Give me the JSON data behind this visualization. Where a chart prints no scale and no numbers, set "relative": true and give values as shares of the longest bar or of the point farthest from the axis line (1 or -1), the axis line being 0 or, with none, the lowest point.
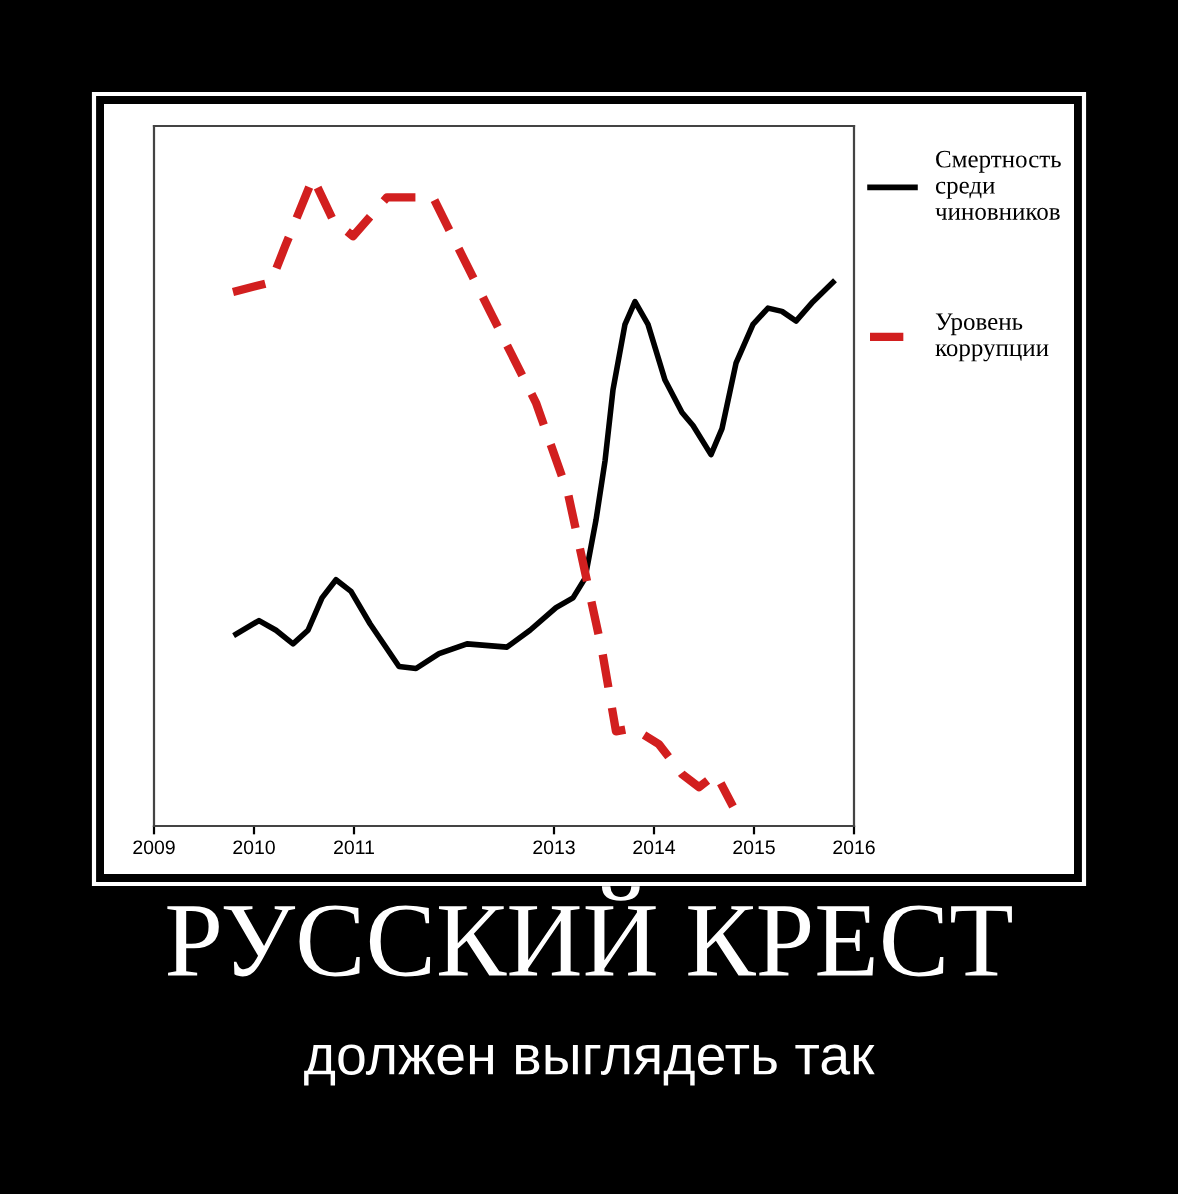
{
  "chart_data": {
    "type": "line",
    "title": "РУССКИЙ КРЕСТ",
    "subtitle": "должен выглядеть так",
    "relative": true,
    "xlim": [
      2009,
      2016
    ],
    "xticks": [
      2009,
      2010,
      2011,
      2013,
      2014,
      2015,
      2016
    ],
    "legend": "right",
    "series": [
      {
        "name": "Смертность среди чиновников",
        "color": "#000000",
        "line_style": "solid",
        "x": [
          2009.82,
          2010.05,
          2010.22,
          2010.39,
          2010.54,
          2010.68,
          2010.82,
          2010.97,
          2011.16,
          2011.45,
          2011.62,
          2011.85,
          2012.13,
          2012.53,
          2012.76,
          2013.02,
          2013.19,
          2013.31,
          2013.42,
          2013.51,
          2013.59,
          2013.71,
          2013.81,
          2013.94,
          2014.11,
          2014.28,
          2014.39,
          2014.57,
          2014.68,
          2014.82,
          2014.99,
          2015.14,
          2015.28,
          2015.42,
          2015.59,
          2015.79
        ],
        "values": [
          0.296,
          0.317,
          0.302,
          0.281,
          0.302,
          0.352,
          0.38,
          0.362,
          0.312,
          0.246,
          0.243,
          0.266,
          0.281,
          0.276,
          0.302,
          0.337,
          0.352,
          0.382,
          0.472,
          0.563,
          0.673,
          0.774,
          0.809,
          0.774,
          0.688,
          0.638,
          0.618,
          0.573,
          0.613,
          0.714,
          0.774,
          0.799,
          0.794,
          0.779,
          0.809,
          0.839
        ]
      },
      {
        "name": "Уровень коррупции",
        "color": "#d21f1f",
        "line_style": "dashed",
        "x": [
          2009.79,
          2010.17,
          2010.31,
          2010.59,
          2010.79,
          2010.99,
          2011.33,
          2011.79,
          2012.36,
          2012.82,
          2013.14,
          2013.31,
          2013.48,
          2013.62,
          2013.79,
          2014.05,
          2014.28,
          2014.45,
          2014.62,
          2014.79
        ],
        "values": [
          0.824,
          0.839,
          0.894,
          1.0,
          0.935,
          0.91,
          0.97,
          0.97,
          0.794,
          0.653,
          0.513,
          0.392,
          0.271,
          0.146,
          0.151,
          0.126,
          0.08,
          0.06,
          0.08,
          0.03
        ]
      }
    ]
  }
}
